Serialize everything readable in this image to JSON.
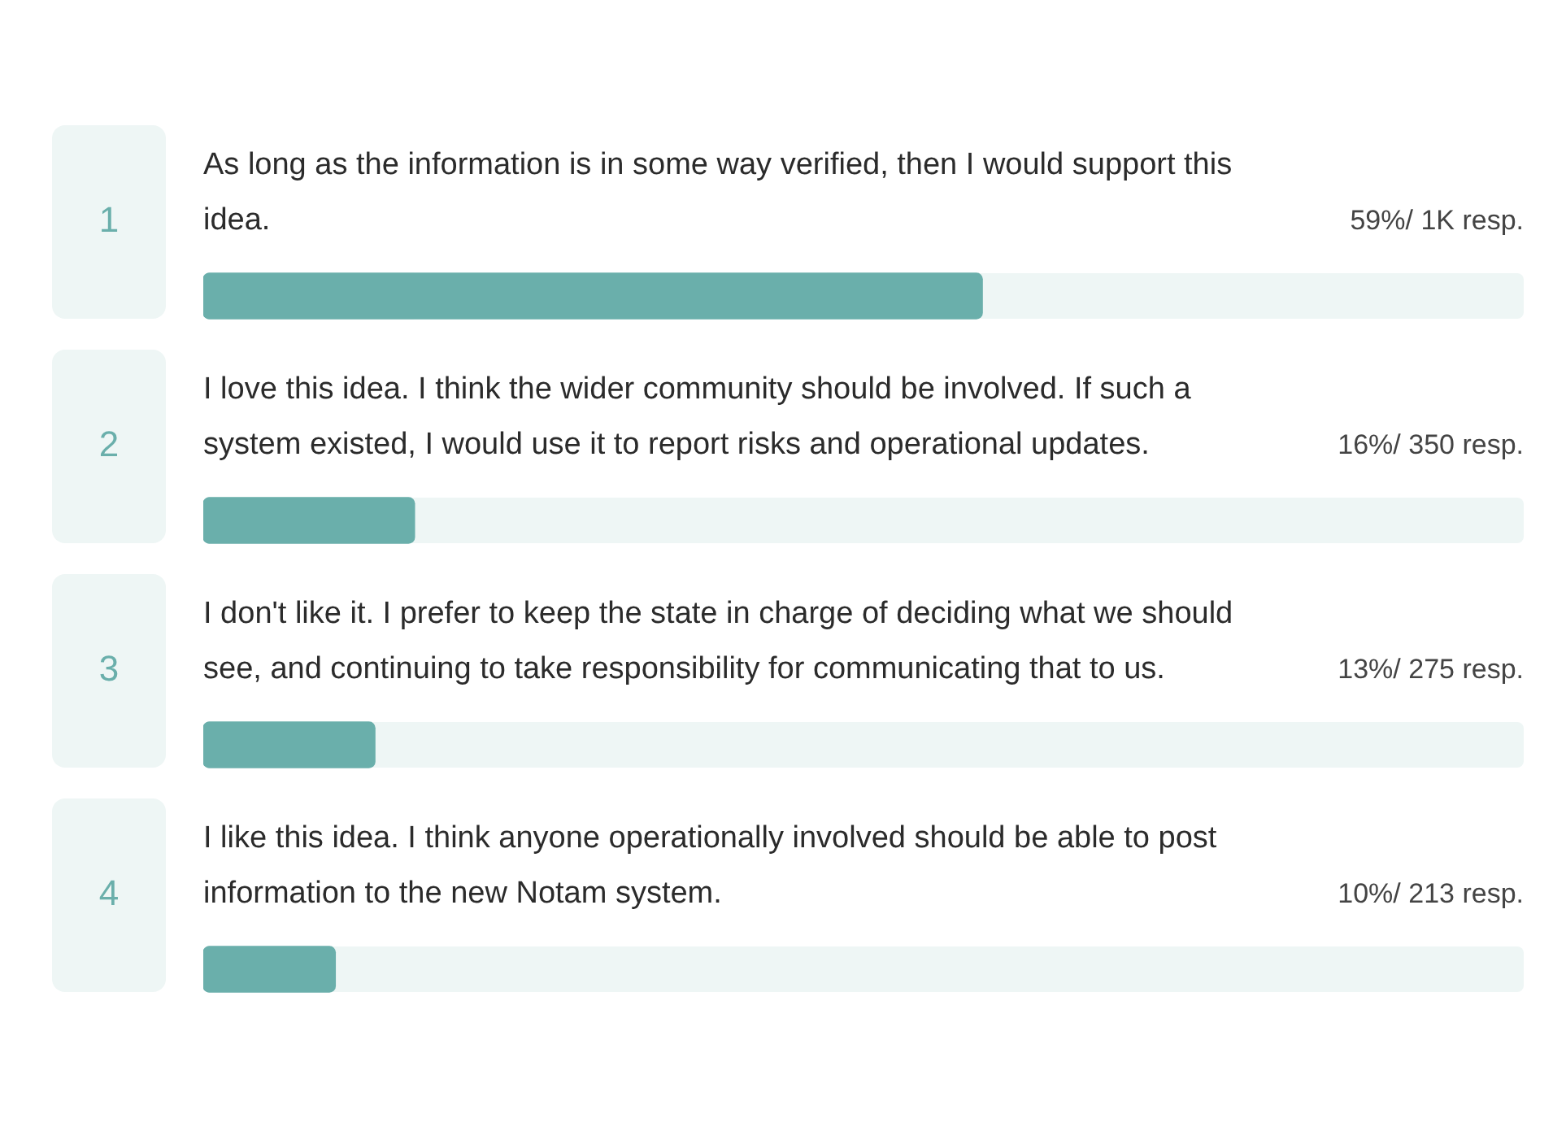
{
  "chart_data": {
    "type": "bar",
    "orientation": "horizontal",
    "categories": [
      "As long as the information is in some way verified, then I would support this idea.",
      "I love this idea. I think the wider community should be involved. If such a system existed, I would use it to report risks and operational updates.",
      "I don't like it. I prefer to keep the state in charge of deciding what we should see, and continuing to take responsibility for communicating that to us.",
      "I like this idea. I think anyone operationally involved should be able to post information to the new Notam system."
    ],
    "values": [
      59,
      16,
      13,
      10
    ],
    "value_labels": [
      "59%/ 1K resp.",
      "16%/ 350 resp.",
      "13%/ 275 resp.",
      "10%/ 213 resp."
    ],
    "color": "#6aafab",
    "xlim": [
      0,
      100
    ],
    "tick_labels": false,
    "annotations": [
      "1",
      "2",
      "3",
      "4"
    ]
  }
}
